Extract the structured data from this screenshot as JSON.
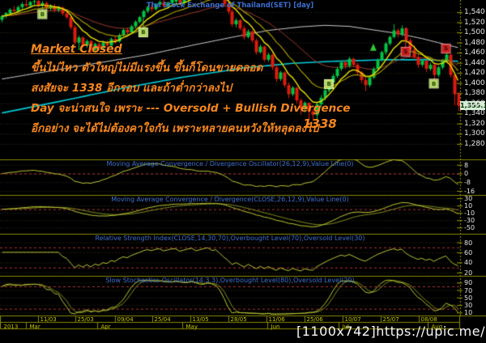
{
  "watermark": "[1100x742]https://upic.me/",
  "annotation": {
    "heading": "Market Closed",
    "lines": [
      "ขึ้นไม่ไหว ตัวใหญ่ไม่มีแรงขึ้น ขึ้นก็โดนขายตลอด",
      "สงสัยจะ 1338 อีกรอบ และถ้าต่ำกว่าลงไป",
      "Day จะน่าสนใจ เพราะ --- Oversold + Bullish Divergence",
      "อีกอย่าง จะได้ไม่ต้องคาใจกัน เพราะหลายคนหวังให้หลุดลงไป"
    ],
    "price_note": "1338"
  },
  "colors": {
    "background": "#000000",
    "title_blue": "#3d6ed0",
    "annotation_orange": "#f6871f",
    "candle_up": "#00c544",
    "candle_down": "#de1b0e",
    "ma_yellow": "#ece400",
    "ma_olive": "#a69a00",
    "ma_darkred": "#9a3a30",
    "ma_white": "#cfcfcf",
    "ma_cyan": "#00ccd8",
    "indicator_line": "#bcc832",
    "indicator_line2": "#808c1e",
    "level_red": "#b43434",
    "axis_olive": "#9a9a00",
    "label_white": "#e6e6e6",
    "date_label": "#c6c600",
    "last_price_bg": "#d4eed4"
  },
  "chart_data": [
    {
      "type": "candlestick",
      "title": "The Stock Exchange of Thailand(SET) [day]",
      "ylim": [
        1251,
        1564
      ],
      "yticks": [
        1280,
        1300,
        1320,
        1340,
        1360,
        1380,
        1400,
        1420,
        1440,
        1460,
        1480,
        1500,
        1520,
        1540
      ],
      "last_price": "1,355.14",
      "candles": [
        [
          1525,
          1535,
          1520,
          1532
        ],
        [
          1532,
          1540,
          1528,
          1538
        ],
        [
          1538,
          1548,
          1534,
          1545
        ],
        [
          1545,
          1552,
          1540,
          1542
        ],
        [
          1542,
          1553,
          1539,
          1550
        ],
        [
          1550,
          1560,
          1546,
          1556
        ],
        [
          1556,
          1564,
          1550,
          1553
        ],
        [
          1553,
          1562,
          1548,
          1560
        ],
        [
          1560,
          1566,
          1554,
          1562
        ],
        [
          1562,
          1565,
          1550,
          1553
        ],
        [
          1553,
          1562,
          1549,
          1558
        ],
        [
          1558,
          1561,
          1544,
          1548
        ],
        [
          1548,
          1556,
          1543,
          1552
        ],
        [
          1552,
          1556,
          1540,
          1544
        ],
        [
          1544,
          1552,
          1540,
          1549
        ],
        [
          1549,
          1551,
          1533,
          1537
        ],
        [
          1537,
          1543,
          1527,
          1530
        ],
        [
          1530,
          1533,
          1506,
          1510
        ],
        [
          1510,
          1514,
          1476,
          1480
        ],
        [
          1480,
          1494,
          1465,
          1490
        ],
        [
          1490,
          1492,
          1470,
          1474
        ],
        [
          1474,
          1486,
          1470,
          1483
        ],
        [
          1483,
          1485,
          1458,
          1466
        ],
        [
          1466,
          1480,
          1462,
          1477
        ],
        [
          1477,
          1480,
          1465,
          1469
        ],
        [
          1469,
          1483,
          1466,
          1480
        ],
        [
          1480,
          1484,
          1470,
          1474
        ],
        [
          1474,
          1490,
          1472,
          1487
        ],
        [
          1487,
          1492,
          1478,
          1482
        ],
        [
          1482,
          1498,
          1480,
          1495
        ],
        [
          1495,
          1508,
          1492,
          1505
        ],
        [
          1505,
          1510,
          1496,
          1500
        ],
        [
          1500,
          1515,
          1498,
          1512
        ],
        [
          1512,
          1524,
          1508,
          1521
        ],
        [
          1521,
          1533,
          1518,
          1530
        ],
        [
          1530,
          1545,
          1527,
          1542
        ],
        [
          1542,
          1553,
          1538,
          1550
        ],
        [
          1550,
          1554,
          1541,
          1546
        ],
        [
          1546,
          1558,
          1543,
          1555
        ],
        [
          1555,
          1563,
          1550,
          1560
        ],
        [
          1560,
          1565,
          1548,
          1552
        ],
        [
          1552,
          1561,
          1547,
          1558
        ],
        [
          1558,
          1568,
          1554,
          1565
        ],
        [
          1561,
          1570,
          1556,
          1566
        ],
        [
          1566,
          1570,
          1554,
          1558
        ],
        [
          1558,
          1567,
          1553,
          1564
        ],
        [
          1564,
          1574,
          1560,
          1571
        ],
        [
          1571,
          1579,
          1566,
          1576
        ],
        [
          1576,
          1580,
          1564,
          1568
        ],
        [
          1568,
          1577,
          1563,
          1574
        ],
        [
          1574,
          1584,
          1570,
          1581
        ],
        [
          1581,
          1589,
          1576,
          1586
        ],
        [
          1586,
          1590,
          1574,
          1578
        ],
        [
          1578,
          1586,
          1572,
          1582
        ],
        [
          1582,
          1585,
          1566,
          1570
        ],
        [
          1570,
          1576,
          1552,
          1556
        ],
        [
          1556,
          1562,
          1536,
          1541
        ],
        [
          1541,
          1546,
          1511,
          1516
        ],
        [
          1516,
          1528,
          1510,
          1524
        ],
        [
          1524,
          1526,
          1504,
          1508
        ],
        [
          1508,
          1514,
          1486,
          1491
        ],
        [
          1491,
          1506,
          1488,
          1502
        ],
        [
          1502,
          1504,
          1480,
          1484
        ],
        [
          1484,
          1488,
          1456,
          1461
        ],
        [
          1461,
          1476,
          1458,
          1472
        ],
        [
          1472,
          1474,
          1442,
          1446
        ],
        [
          1446,
          1460,
          1442,
          1456
        ],
        [
          1456,
          1458,
          1426,
          1431
        ],
        [
          1431,
          1436,
          1402,
          1408
        ],
        [
          1408,
          1424,
          1404,
          1421
        ],
        [
          1421,
          1423,
          1391,
          1396
        ],
        [
          1396,
          1401,
          1370,
          1378
        ],
        [
          1378,
          1394,
          1374,
          1391
        ],
        [
          1391,
          1392,
          1360,
          1366
        ],
        [
          1366,
          1370,
          1338,
          1349
        ],
        [
          1349,
          1364,
          1342,
          1361
        ],
        [
          1361,
          1362,
          1327,
          1344
        ],
        [
          1344,
          1348,
          1326,
          1337
        ],
        [
          1337,
          1362,
          1328,
          1358
        ],
        [
          1358,
          1376,
          1352,
          1371
        ],
        [
          1371,
          1390,
          1366,
          1386
        ],
        [
          1386,
          1405,
          1382,
          1401
        ],
        [
          1401,
          1418,
          1396,
          1414
        ],
        [
          1414,
          1432,
          1410,
          1428
        ],
        [
          1428,
          1445,
          1424,
          1441
        ],
        [
          1441,
          1444,
          1428,
          1434
        ],
        [
          1434,
          1452,
          1430,
          1448
        ],
        [
          1448,
          1450,
          1432,
          1436
        ],
        [
          1436,
          1440,
          1416,
          1421
        ],
        [
          1421,
          1424,
          1400,
          1406
        ],
        [
          1406,
          1411,
          1384,
          1396
        ],
        [
          1396,
          1414,
          1392,
          1411
        ],
        [
          1411,
          1432,
          1408,
          1428
        ],
        [
          1428,
          1449,
          1424,
          1446
        ],
        [
          1446,
          1464,
          1442,
          1461
        ],
        [
          1461,
          1481,
          1456,
          1478
        ],
        [
          1478,
          1494,
          1474,
          1491
        ],
        [
          1491,
          1516,
          1488,
          1504
        ],
        [
          1504,
          1508,
          1490,
          1496
        ],
        [
          1496,
          1514,
          1492,
          1508
        ],
        [
          1508,
          1510,
          1480,
          1484
        ],
        [
          1484,
          1488,
          1462,
          1466
        ],
        [
          1466,
          1474,
          1446,
          1451
        ],
        [
          1451,
          1458,
          1430,
          1436
        ],
        [
          1436,
          1448,
          1432,
          1444
        ],
        [
          1444,
          1446,
          1422,
          1428
        ],
        [
          1428,
          1440,
          1424,
          1436
        ],
        [
          1436,
          1438,
          1405,
          1416
        ],
        [
          1416,
          1434,
          1412,
          1431
        ],
        [
          1431,
          1448,
          1427,
          1444
        ],
        [
          1444,
          1461,
          1440,
          1456
        ],
        [
          1456,
          1458,
          1411,
          1416
        ],
        [
          1416,
          1420,
          1356,
          1378
        ],
        [
          1378,
          1382,
          1345,
          1355.14
        ]
      ],
      "overlay_keylines": [
        {
          "name": "long-ma-cyan",
          "color": "#00ccd8",
          "width": 1.6,
          "points": [
            [
              0,
              1341
            ],
            [
              15,
              1365
            ],
            [
              30,
              1390
            ],
            [
              45,
              1412
            ],
            [
              60,
              1430
            ],
            [
              72,
              1439
            ],
            [
              82,
              1443
            ],
            [
              95,
              1446
            ],
            [
              105,
              1446
            ],
            [
              113,
              1443
            ]
          ]
        },
        {
          "name": "mid-ma-white",
          "color": "#cfcfcf",
          "width": 1,
          "points": [
            [
              0,
              1408
            ],
            [
              12,
              1424
            ],
            [
              24,
              1440
            ],
            [
              36,
              1456
            ],
            [
              48,
              1476
            ],
            [
              58,
              1492
            ],
            [
              66,
              1504
            ],
            [
              74,
              1511
            ],
            [
              80,
              1514
            ],
            [
              86,
              1512
            ],
            [
              92,
              1505
            ],
            [
              98,
              1498
            ],
            [
              104,
              1488
            ],
            [
              109,
              1478
            ],
            [
              113,
              1470
            ]
          ]
        }
      ],
      "overlay_emas": [
        {
          "name": "ema-slow-darkred",
          "period": 32,
          "color": "#9a3a30",
          "width": 1
        },
        {
          "name": "ema-mid-olive",
          "period": 15,
          "color": "#a69a00",
          "width": 1.2
        },
        {
          "name": "ema-fast-yellow",
          "period": 7,
          "color": "#ece400",
          "width": 1.4
        }
      ],
      "signals": {
        "buy": [
          {
            "day": 10,
            "price": 1536
          },
          {
            "day": 35,
            "price": 1500
          },
          {
            "day": 81,
            "price": 1398
          },
          {
            "day": 107,
            "price": 1399
          }
        ],
        "sell": [
          {
            "day": 100,
            "price": 1462
          },
          {
            "day": 110,
            "price": 1468
          }
        ],
        "arrow_up": [
          {
            "day": 92,
            "price": 1470
          }
        ]
      },
      "xticks": [
        {
          "pos": 0.083,
          "label": "11/03"
        },
        {
          "pos": 0.164,
          "label": "25/03"
        },
        {
          "pos": 0.25,
          "label": "09/04"
        },
        {
          "pos": 0.331,
          "label": "25/04"
        },
        {
          "pos": 0.414,
          "label": "13/05"
        },
        {
          "pos": 0.497,
          "label": "28/05"
        },
        {
          "pos": 0.579,
          "label": "11/06"
        },
        {
          "pos": 0.662,
          "label": "25/06"
        },
        {
          "pos": 0.745,
          "label": "10/07"
        },
        {
          "pos": 0.827,
          "label": "25/07"
        },
        {
          "pos": 0.91,
          "label": "08/08"
        }
      ],
      "month_cells": [
        {
          "pos": 0.0,
          "label": "2013"
        },
        {
          "pos": 0.056,
          "label": "Mar"
        },
        {
          "pos": 0.211,
          "label": "Apr"
        },
        {
          "pos": 0.396,
          "label": "May"
        },
        {
          "pos": 0.581,
          "label": "Jun"
        },
        {
          "pos": 0.736,
          "label": "Jul"
        },
        {
          "pos": 0.929,
          "label": "Aug"
        }
      ]
    },
    {
      "type": "line",
      "indicator": "macd_osc",
      "title": "Moving Average Convergence / Divergence Oscillator(26,12,9),Value Line(0)",
      "ylim": [
        -19,
        13
      ],
      "yticks": [
        8,
        0,
        -8,
        -16
      ],
      "levels": [
        0
      ]
    },
    {
      "type": "line",
      "indicator": "macd",
      "title": "Moving Average Convergence / Divergence(CLOSE,26,12,9),Value Line(0)",
      "ylim": [
        -65,
        39
      ],
      "yticks": [
        30,
        10,
        -10,
        -30,
        -50
      ],
      "levels": [
        0
      ]
    },
    {
      "type": "line",
      "indicator": "rsi",
      "title": "Relative Strength Index(CLOSE,14,30,70),Overbought Level(70),Oversold Level(30)",
      "ylim": [
        15,
        97
      ],
      "yticks": [
        80,
        60,
        40,
        20
      ],
      "levels": [
        70,
        30
      ]
    },
    {
      "type": "line",
      "indicator": "stoch",
      "title": "Slow Stochastics Oscillator(14,3,3),Overbought Level(80),Oversold Level(20)",
      "ylim": [
        2,
        108
      ],
      "yticks": [
        90,
        70,
        50,
        30,
        10
      ],
      "levels": [
        80,
        20
      ]
    }
  ]
}
